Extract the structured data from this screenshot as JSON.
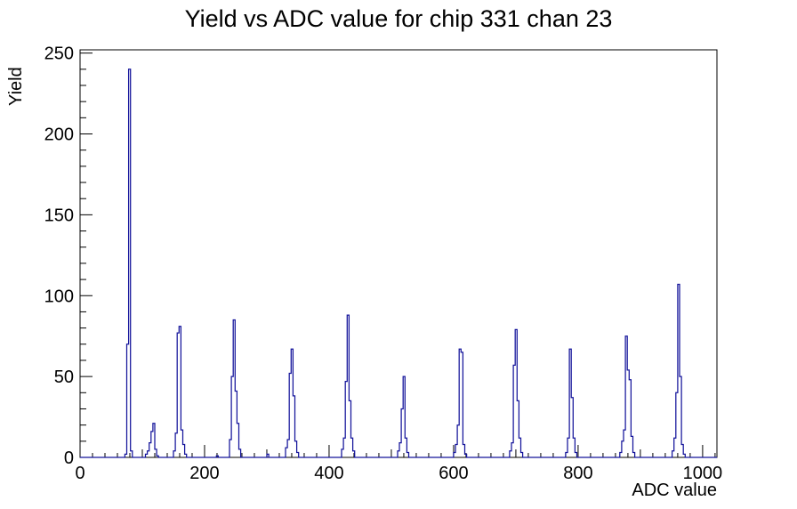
{
  "window": {
    "background": "#ffffff"
  },
  "chart_data": {
    "type": "bar",
    "subtype": "histogram-outline",
    "title": "Yield vs ADC value for chip 331 chan 23",
    "xlabel": "ADC value",
    "ylabel": "Yield",
    "xlim": [
      0,
      1023
    ],
    "ylim": [
      0,
      252
    ],
    "x_major_ticks": [
      0,
      200,
      400,
      600,
      800,
      1000
    ],
    "y_major_ticks": [
      0,
      50,
      100,
      150,
      200,
      250
    ],
    "x_medium_step": 100,
    "x_minor_step": 20,
    "y_minor_step": 10,
    "grid": false,
    "legend": false,
    "line_color": "#14149b",
    "axis_color": "#000000",
    "bin_width": 3,
    "bins": [
      [
        72,
        2
      ],
      [
        75,
        70
      ],
      [
        78,
        240
      ],
      [
        81,
        4
      ],
      [
        105,
        2
      ],
      [
        108,
        4
      ],
      [
        111,
        9
      ],
      [
        114,
        16
      ],
      [
        117,
        21
      ],
      [
        120,
        5
      ],
      [
        123,
        1
      ],
      [
        150,
        4
      ],
      [
        153,
        15
      ],
      [
        156,
        77
      ],
      [
        159,
        81
      ],
      [
        162,
        17
      ],
      [
        165,
        8
      ],
      [
        168,
        2
      ],
      [
        219,
        1
      ],
      [
        240,
        11
      ],
      [
        243,
        50
      ],
      [
        246,
        85
      ],
      [
        249,
        41
      ],
      [
        252,
        21
      ],
      [
        255,
        5
      ],
      [
        300,
        2
      ],
      [
        330,
        6
      ],
      [
        333,
        11
      ],
      [
        336,
        52
      ],
      [
        339,
        67
      ],
      [
        342,
        38
      ],
      [
        345,
        10
      ],
      [
        348,
        3
      ],
      [
        420,
        5
      ],
      [
        423,
        12
      ],
      [
        426,
        47
      ],
      [
        429,
        88
      ],
      [
        432,
        35
      ],
      [
        435,
        12
      ],
      [
        438,
        4
      ],
      [
        510,
        4
      ],
      [
        513,
        9
      ],
      [
        516,
        30
      ],
      [
        519,
        50
      ],
      [
        522,
        12
      ],
      [
        525,
        3
      ],
      [
        600,
        3
      ],
      [
        603,
        8
      ],
      [
        606,
        20
      ],
      [
        609,
        67
      ],
      [
        612,
        65
      ],
      [
        615,
        8
      ],
      [
        618,
        2
      ],
      [
        690,
        4
      ],
      [
        693,
        9
      ],
      [
        696,
        57
      ],
      [
        699,
        79
      ],
      [
        702,
        35
      ],
      [
        705,
        12
      ],
      [
        708,
        3
      ],
      [
        780,
        3
      ],
      [
        783,
        12
      ],
      [
        786,
        67
      ],
      [
        789,
        37
      ],
      [
        792,
        12
      ],
      [
        795,
        3
      ],
      [
        867,
        3
      ],
      [
        870,
        10
      ],
      [
        873,
        17
      ],
      [
        876,
        75
      ],
      [
        879,
        54
      ],
      [
        882,
        48
      ],
      [
        885,
        13
      ],
      [
        888,
        3
      ],
      [
        951,
        4
      ],
      [
        954,
        12
      ],
      [
        957,
        40
      ],
      [
        960,
        107
      ],
      [
        963,
        50
      ],
      [
        966,
        8
      ],
      [
        969,
        2
      ]
    ]
  }
}
